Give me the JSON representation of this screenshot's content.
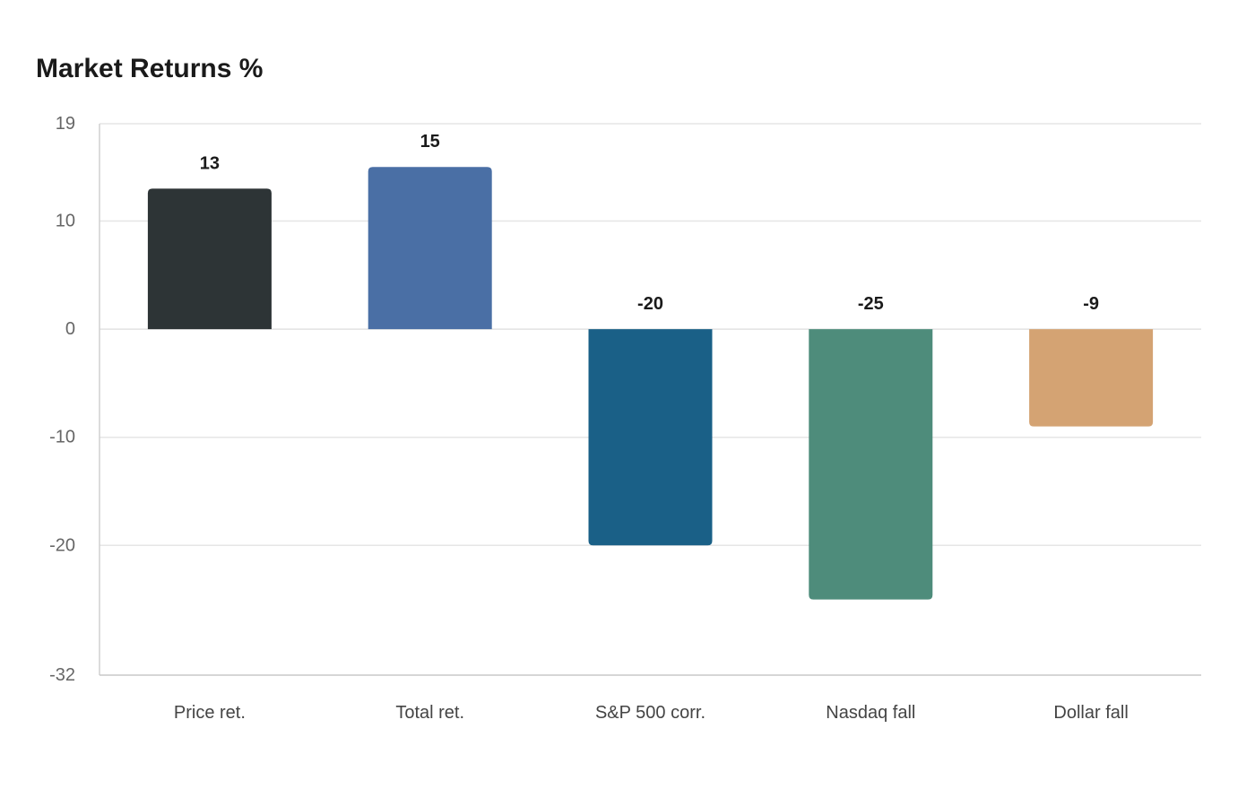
{
  "chart_data": {
    "type": "bar",
    "title": "Market Returns %",
    "xlabel": "",
    "ylabel": "",
    "categories": [
      "Price ret.",
      "Total ret.",
      "S&P 500 corr.",
      "Nasdaq fall",
      "Dollar fall"
    ],
    "values": [
      13,
      15,
      -20,
      -25,
      -9
    ],
    "value_labels": [
      "13",
      "15",
      "-20",
      "-25",
      "-9"
    ],
    "colors": [
      "#2d3436",
      "#4a6fa5",
      "#1a6087",
      "#4e8c7b",
      "#d4a373"
    ],
    "ylim": [
      -32,
      19
    ],
    "yticks": [
      19,
      10,
      0,
      -10,
      -20,
      -32
    ],
    "grid": true,
    "legend": "none"
  }
}
